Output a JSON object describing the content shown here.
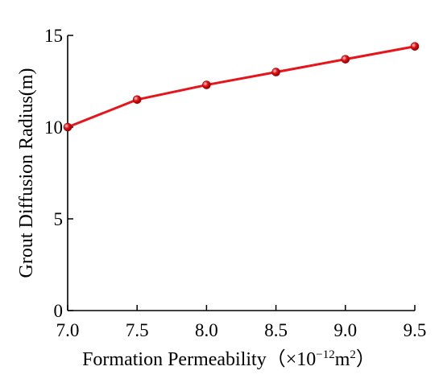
{
  "chart_data": {
    "type": "line",
    "x": [
      7.0,
      7.5,
      8.0,
      8.5,
      9.0,
      9.5
    ],
    "series": [
      {
        "values": [
          10.0,
          11.5,
          12.3,
          13.0,
          13.7,
          14.4
        ]
      }
    ],
    "x_ticks": [
      "7.0",
      "7.5",
      "8.0",
      "8.5",
      "9.0",
      "9.5"
    ],
    "y_ticks": [
      "0",
      "5",
      "10",
      "15"
    ],
    "xlim": [
      7.0,
      9.5
    ],
    "ylim": [
      0,
      15
    ],
    "ylabel": "Grout Diffusion Radius(m)",
    "xlabel": {
      "text": "Formation Permeability",
      "unit_open": "（×10",
      "unit_exp": "−12",
      "unit_mid": "m",
      "unit_exp2": "2",
      "unit_close": "）"
    },
    "grid": false,
    "line_color": "#e8141b",
    "marker_color": "#e8141b"
  }
}
